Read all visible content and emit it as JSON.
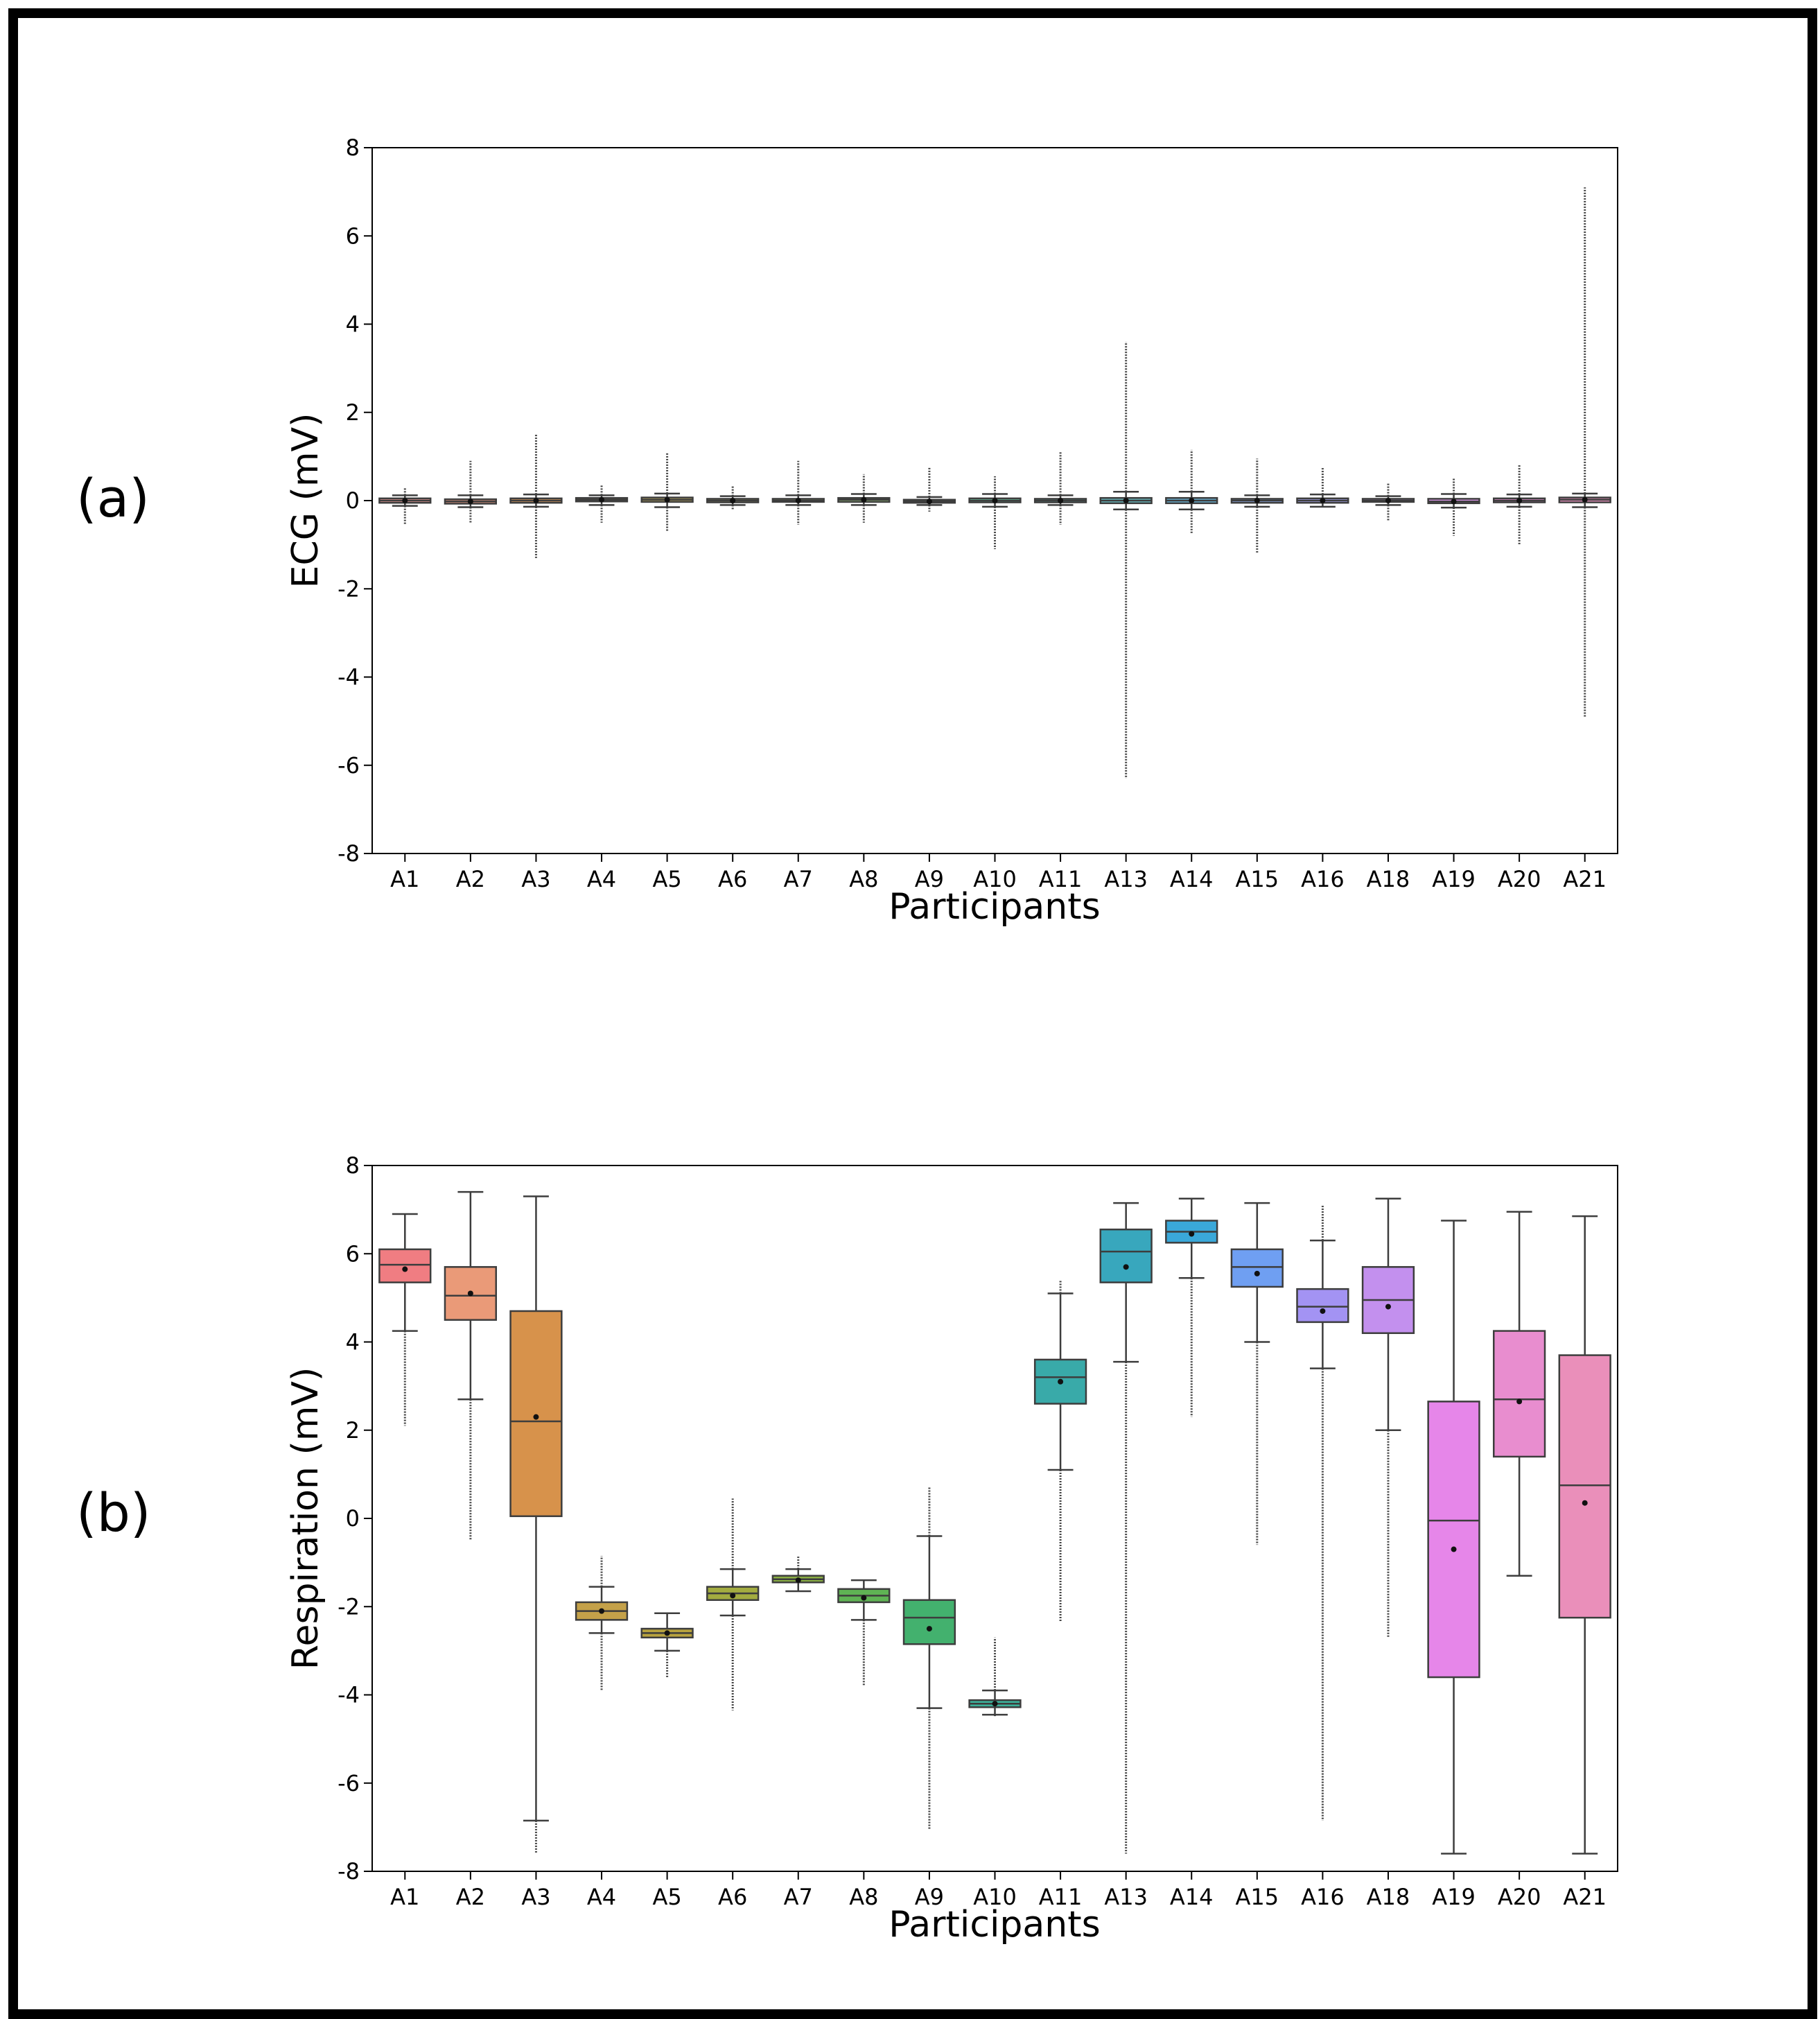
{
  "chart_data": [
    {
      "type": "box",
      "panel_label": "(a)",
      "title": "",
      "xlabel": "Participants",
      "ylabel": "ECG (mV)",
      "ylim": [
        -8,
        8
      ],
      "yticks": [
        8,
        6,
        4,
        2,
        0,
        -2,
        -4,
        -6,
        -8
      ],
      "ytick_labels": [
        "8",
        "6",
        "4",
        "2",
        "0",
        "-2",
        "-4",
        "-6",
        "-8"
      ],
      "categories": [
        "A1",
        "A2",
        "A3",
        "A4",
        "A5",
        "A6",
        "A7",
        "A8",
        "A9",
        "A10",
        "A11",
        "A13",
        "A14",
        "A15",
        "A16",
        "A18",
        "A19",
        "A20",
        "A21"
      ],
      "boxes": [
        {
          "q1": -0.05,
          "median": 0.0,
          "q3": 0.05,
          "mean": 0.0,
          "whisker_low": -0.12,
          "whisker_high": 0.12,
          "outlier_min": -0.55,
          "outlier_max": 0.3
        },
        {
          "q1": -0.07,
          "median": -0.02,
          "q3": 0.03,
          "mean": -0.02,
          "whisker_low": -0.15,
          "whisker_high": 0.12,
          "outlier_min": -0.5,
          "outlier_max": 0.9
        },
        {
          "q1": -0.05,
          "median": 0.0,
          "q3": 0.05,
          "mean": 0.0,
          "whisker_low": -0.14,
          "whisker_high": 0.14,
          "outlier_min": -1.3,
          "outlier_max": 1.5
        },
        {
          "q1": -0.02,
          "median": 0.02,
          "q3": 0.06,
          "mean": 0.02,
          "whisker_low": -0.1,
          "whisker_high": 0.12,
          "outlier_min": -0.5,
          "outlier_max": 0.35
        },
        {
          "q1": -0.03,
          "median": 0.02,
          "q3": 0.07,
          "mean": 0.02,
          "whisker_low": -0.15,
          "whisker_high": 0.16,
          "outlier_min": -0.7,
          "outlier_max": 1.1
        },
        {
          "q1": -0.04,
          "median": 0.0,
          "q3": 0.04,
          "mean": 0.0,
          "whisker_low": -0.1,
          "whisker_high": 0.1,
          "outlier_min": -0.2,
          "outlier_max": 0.35
        },
        {
          "q1": -0.03,
          "median": 0.0,
          "q3": 0.04,
          "mean": 0.0,
          "whisker_low": -0.1,
          "whisker_high": 0.12,
          "outlier_min": -0.55,
          "outlier_max": 0.9
        },
        {
          "q1": -0.03,
          "median": 0.02,
          "q3": 0.06,
          "mean": 0.02,
          "whisker_low": -0.1,
          "whisker_high": 0.15,
          "outlier_min": -0.5,
          "outlier_max": 0.6
        },
        {
          "q1": -0.05,
          "median": -0.02,
          "q3": 0.02,
          "mean": -0.02,
          "whisker_low": -0.1,
          "whisker_high": 0.08,
          "outlier_min": -0.25,
          "outlier_max": 0.75
        },
        {
          "q1": -0.04,
          "median": 0.0,
          "q3": 0.05,
          "mean": 0.0,
          "whisker_low": -0.14,
          "whisker_high": 0.15,
          "outlier_min": -1.1,
          "outlier_max": 0.55
        },
        {
          "q1": -0.04,
          "median": 0.0,
          "q3": 0.04,
          "mean": 0.0,
          "whisker_low": -0.1,
          "whisker_high": 0.12,
          "outlier_min": -0.55,
          "outlier_max": 1.1
        },
        {
          "q1": -0.06,
          "median": 0.0,
          "q3": 0.06,
          "mean": 0.0,
          "whisker_low": -0.2,
          "whisker_high": 0.2,
          "outlier_min": -6.3,
          "outlier_max": 3.6
        },
        {
          "q1": -0.06,
          "median": 0.0,
          "q3": 0.06,
          "mean": 0.0,
          "whisker_low": -0.2,
          "whisker_high": 0.2,
          "outlier_min": -0.75,
          "outlier_max": 1.15
        },
        {
          "q1": -0.05,
          "median": 0.0,
          "q3": 0.04,
          "mean": 0.0,
          "whisker_low": -0.14,
          "whisker_high": 0.12,
          "outlier_min": -1.2,
          "outlier_max": 0.95
        },
        {
          "q1": -0.05,
          "median": 0.0,
          "q3": 0.05,
          "mean": 0.0,
          "whisker_low": -0.14,
          "whisker_high": 0.14,
          "outlier_min": -0.15,
          "outlier_max": 0.75
        },
        {
          "q1": -0.03,
          "median": 0.0,
          "q3": 0.04,
          "mean": 0.0,
          "whisker_low": -0.1,
          "whisker_high": 0.1,
          "outlier_min": -0.45,
          "outlier_max": 0.4
        },
        {
          "q1": -0.06,
          "median": -0.02,
          "q3": 0.04,
          "mean": -0.02,
          "whisker_low": -0.16,
          "whisker_high": 0.15,
          "outlier_min": -0.8,
          "outlier_max": 0.5
        },
        {
          "q1": -0.04,
          "median": 0.0,
          "q3": 0.05,
          "mean": 0.0,
          "whisker_low": -0.14,
          "whisker_high": 0.14,
          "outlier_min": -1.0,
          "outlier_max": 0.8
        },
        {
          "q1": -0.04,
          "median": 0.02,
          "q3": 0.07,
          "mean": 0.02,
          "whisker_low": -0.15,
          "whisker_high": 0.16,
          "outlier_min": -4.9,
          "outlier_max": 7.1
        }
      ]
    },
    {
      "type": "box",
      "panel_label": "(b)",
      "title": "",
      "xlabel": "Participants",
      "ylabel": "Respiration (mV)",
      "ylim": [
        -8,
        8
      ],
      "yticks": [
        8,
        6,
        4,
        2,
        0,
        -2,
        -4,
        -6,
        -8
      ],
      "ytick_labels": [
        "8",
        "6",
        "4",
        "2",
        "0",
        "-2",
        "-4",
        "-6",
        "-8"
      ],
      "categories": [
        "A1",
        "A2",
        "A3",
        "A4",
        "A5",
        "A6",
        "A7",
        "A8",
        "A9",
        "A10",
        "A11",
        "A13",
        "A14",
        "A15",
        "A16",
        "A18",
        "A19",
        "A20",
        "A21"
      ],
      "boxes": [
        {
          "q1": 5.35,
          "median": 5.75,
          "q3": 6.1,
          "mean": 5.65,
          "whisker_low": 4.25,
          "whisker_high": 6.9,
          "outlier_min": 2.1,
          "outlier_max": 6.9
        },
        {
          "q1": 4.5,
          "median": 5.05,
          "q3": 5.7,
          "mean": 5.1,
          "whisker_low": 2.7,
          "whisker_high": 7.4,
          "outlier_min": -0.5,
          "outlier_max": 7.4
        },
        {
          "q1": 0.05,
          "median": 2.2,
          "q3": 4.7,
          "mean": 2.3,
          "whisker_low": -6.85,
          "whisker_high": 7.3,
          "outlier_min": -7.6,
          "outlier_max": 7.3
        },
        {
          "q1": -2.3,
          "median": -2.1,
          "q3": -1.9,
          "mean": -2.1,
          "whisker_low": -2.6,
          "whisker_high": -1.55,
          "outlier_min": -3.9,
          "outlier_max": -0.85
        },
        {
          "q1": -2.7,
          "median": -2.6,
          "q3": -2.5,
          "mean": -2.6,
          "whisker_low": -3.0,
          "whisker_high": -2.15,
          "outlier_min": -3.6,
          "outlier_max": -2.15
        },
        {
          "q1": -1.85,
          "median": -1.7,
          "q3": -1.55,
          "mean": -1.75,
          "whisker_low": -2.2,
          "whisker_high": -1.15,
          "outlier_min": -4.35,
          "outlier_max": 0.45
        },
        {
          "q1": -1.45,
          "median": -1.38,
          "q3": -1.3,
          "mean": -1.4,
          "whisker_low": -1.65,
          "whisker_high": -1.15,
          "outlier_min": -1.65,
          "outlier_max": -0.85
        },
        {
          "q1": -1.9,
          "median": -1.75,
          "q3": -1.6,
          "mean": -1.8,
          "whisker_low": -2.3,
          "whisker_high": -1.4,
          "outlier_min": -3.8,
          "outlier_max": -1.4
        },
        {
          "q1": -2.85,
          "median": -2.25,
          "q3": -1.85,
          "mean": -2.5,
          "whisker_low": -4.3,
          "whisker_high": -0.4,
          "outlier_min": -7.05,
          "outlier_max": 0.7
        },
        {
          "q1": -4.28,
          "median": -4.2,
          "q3": -4.12,
          "mean": -4.2,
          "whisker_low": -4.45,
          "whisker_high": -3.9,
          "outlier_min": -4.5,
          "outlier_max": -2.7
        },
        {
          "q1": 2.6,
          "median": 3.2,
          "q3": 3.6,
          "mean": 3.1,
          "whisker_low": 1.1,
          "whisker_high": 5.1,
          "outlier_min": -2.35,
          "outlier_max": 5.4
        },
        {
          "q1": 5.35,
          "median": 6.05,
          "q3": 6.55,
          "mean": 5.7,
          "whisker_low": 3.55,
          "whisker_high": 7.15,
          "outlier_min": -7.6,
          "outlier_max": 7.15
        },
        {
          "q1": 6.25,
          "median": 6.5,
          "q3": 6.75,
          "mean": 6.45,
          "whisker_low": 5.45,
          "whisker_high": 7.25,
          "outlier_min": 2.3,
          "outlier_max": 7.25
        },
        {
          "q1": 5.25,
          "median": 5.7,
          "q3": 6.1,
          "mean": 5.55,
          "whisker_low": 4.0,
          "whisker_high": 7.15,
          "outlier_min": -0.6,
          "outlier_max": 7.15
        },
        {
          "q1": 4.45,
          "median": 4.8,
          "q3": 5.2,
          "mean": 4.7,
          "whisker_low": 3.4,
          "whisker_high": 6.3,
          "outlier_min": -6.85,
          "outlier_max": 7.1
        },
        {
          "q1": 4.2,
          "median": 4.95,
          "q3": 5.7,
          "mean": 4.8,
          "whisker_low": 2.0,
          "whisker_high": 7.25,
          "outlier_min": -2.7,
          "outlier_max": 7.25
        },
        {
          "q1": -3.6,
          "median": -0.05,
          "q3": 2.65,
          "mean": -0.7,
          "whisker_low": -7.6,
          "whisker_high": 6.75,
          "outlier_min": -7.6,
          "outlier_max": 6.75
        },
        {
          "q1": 1.4,
          "median": 2.7,
          "q3": 4.25,
          "mean": 2.65,
          "whisker_low": -1.3,
          "whisker_high": 6.95,
          "outlier_min": -1.3,
          "outlier_max": 6.95
        },
        {
          "q1": -2.25,
          "median": 0.75,
          "q3": 3.7,
          "mean": 0.35,
          "whisker_low": -7.6,
          "whisker_high": 6.85,
          "outlier_min": -7.6,
          "outlier_max": 6.85
        }
      ]
    }
  ],
  "colors": {
    "boxes_a": [
      "#e89a97",
      "#ea9c84",
      "#d99a5e",
      "#c9a865",
      "#bdab61",
      "#b0b26c",
      "#a6b86e",
      "#93bd7a",
      "#7cc08a",
      "#69c09d",
      "#66bfb0",
      "#68bcc3",
      "#6ab5d8",
      "#8fb0ee",
      "#a9a8f1",
      "#c7a0ee",
      "#dc96ea",
      "#e894d7",
      "#eb93c0"
    ],
    "boxes_b": [
      "#f07d82",
      "#ea9a78",
      "#d7924b",
      "#c4a149",
      "#b8a33f",
      "#a3ac40",
      "#8aae44",
      "#5fb354",
      "#43b16e",
      "#3cb19a",
      "#39aaa9",
      "#38a7bd",
      "#3aa8d9",
      "#6f9ff2",
      "#a393f3",
      "#c390ee",
      "#e686e9",
      "#e88dcf",
      "#ea8fba"
    ],
    "median_line": "#3d3d3d",
    "axis": "#000000",
    "frame": "#000000"
  }
}
